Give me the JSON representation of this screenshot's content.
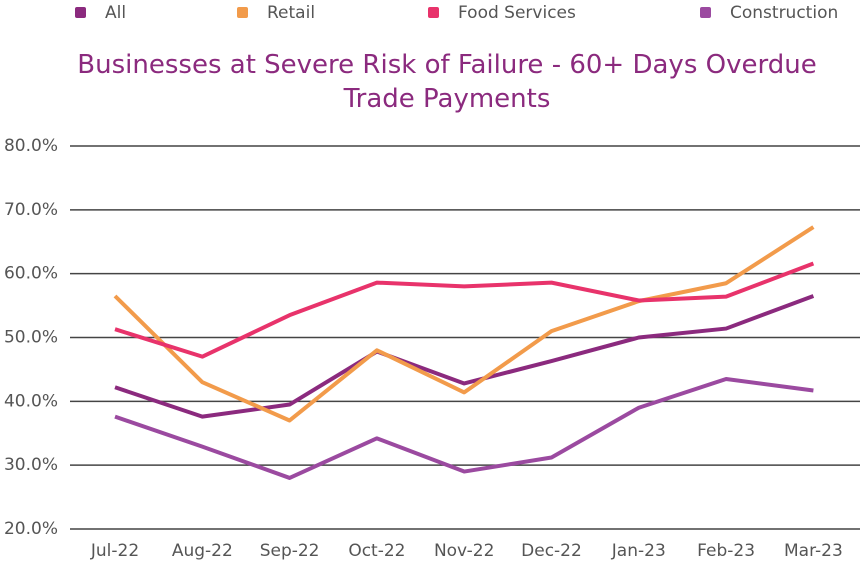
{
  "chart_data": {
    "type": "line",
    "title": "Businesses at Severe Risk of Failure - 60+ Days Overdue Trade Payments",
    "categories": [
      "Jul-22",
      "Aug-22",
      "Sep-22",
      "Oct-22",
      "Nov-22",
      "Dec-22",
      "Jan-23",
      "Feb-23",
      "Mar-23"
    ],
    "series": [
      {
        "name": "All",
        "color": "#8b2a7e",
        "values": [
          42.2,
          37.6,
          39.5,
          47.8,
          42.8,
          46.3,
          50.0,
          51.4,
          56.5
        ]
      },
      {
        "name": "Retail",
        "color": "#f29b4b",
        "values": [
          56.5,
          43.0,
          37.0,
          48.0,
          41.4,
          51.0,
          55.7,
          58.5,
          67.3
        ]
      },
      {
        "name": "Food Services",
        "color": "#e8336b",
        "values": [
          51.3,
          47.0,
          53.5,
          58.6,
          58.0,
          58.6,
          55.8,
          56.4,
          61.6
        ]
      },
      {
        "name": "Construction",
        "color": "#9b4aa0",
        "values": [
          37.6,
          32.9,
          28.0,
          34.2,
          29.0,
          31.2,
          39.0,
          43.5,
          41.7
        ]
      }
    ],
    "ylim": [
      20,
      80
    ],
    "yticks": [
      {
        "value": 20,
        "label": "20.0%"
      },
      {
        "value": 30,
        "label": "30.0%"
      },
      {
        "value": 40,
        "label": "40.0%"
      },
      {
        "value": 50,
        "label": "50.0%"
      },
      {
        "value": 60,
        "label": "60.0%"
      },
      {
        "value": 70,
        "label": "70.0%"
      },
      {
        "value": 80,
        "label": "80.0%"
      }
    ],
    "grid": true,
    "legend": "top"
  }
}
